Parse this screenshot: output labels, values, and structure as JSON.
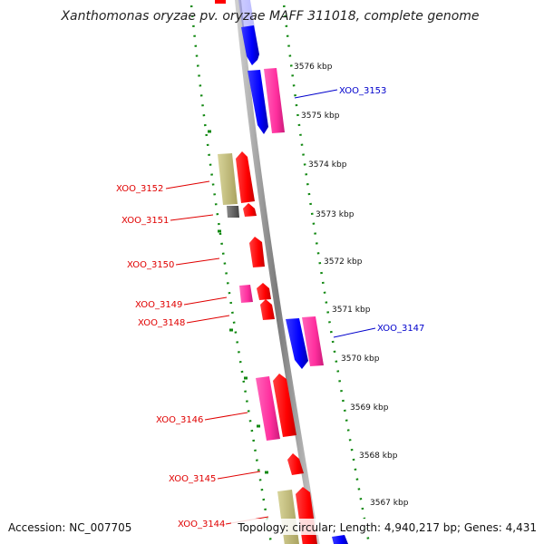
{
  "title": "Xanthomonas oryzae pv. oryzae MAFF 311018, complete genome",
  "footer": {
    "accession": "Accession: NC_007705",
    "topology": "Topology: circular; Length: 4,940,217 bp; Genes: 4,431"
  },
  "kbp_ticks": [
    "3576 kbp",
    "3575 kbp",
    "3574 kbp",
    "3573 kbp",
    "3572 kbp",
    "3571 kbp",
    "3570 kbp",
    "3569 kbp",
    "3568 kbp",
    "3567 kbp"
  ],
  "gene_labels_left": [
    "XOO_3152",
    "XOO_3151",
    "XOO_3150",
    "XOO_3149",
    "XOO_3148",
    "XOO_3146",
    "XOO_3145",
    "XOO_3144"
  ],
  "gene_labels_right": [
    "XOO_3153",
    "XOO_3147"
  ],
  "colors": {
    "backbone": "#888888",
    "forward_gene": "#ff0000",
    "reverse_gene": "#0000ff",
    "rna_pink": "#ff33a0",
    "pseudo_olive": "#bdb76b",
    "gray_gene": "#666666",
    "ruler_dots": "#118811",
    "label_left": "#e00000",
    "label_right": "#0000cc"
  }
}
